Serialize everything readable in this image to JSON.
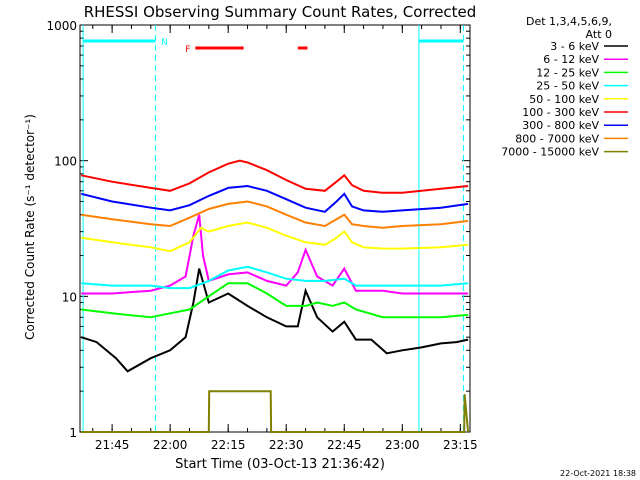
{
  "chart_data": {
    "type": "line",
    "title": "RHESSI Observing Summary Count Rates, Corrected",
    "ylabel": "Corrected Count Rate (s⁻¹ detector⁻¹)",
    "xlabel": "Start Time (03-Oct-13 21:36:42)",
    "yscale": "log",
    "ylim": [
      1,
      1000
    ],
    "y_ticks": [
      {
        "v": 1,
        "label": "1"
      },
      {
        "v": 10,
        "label": "10"
      },
      {
        "v": 100,
        "label": "100"
      },
      {
        "v": 1000,
        "label": "1000"
      }
    ],
    "x_start_min": 1296.7,
    "x_end_min": 1397.5,
    "x_ticks": [
      {
        "m": 1305,
        "label": "21:45"
      },
      {
        "m": 1320,
        "label": "22:00"
      },
      {
        "m": 1335,
        "label": "22:15"
      },
      {
        "m": 1350,
        "label": "22:30"
      },
      {
        "m": 1365,
        "label": "22:45"
      },
      {
        "m": 1380,
        "label": "23:00"
      },
      {
        "m": 1395,
        "label": "23:15"
      }
    ],
    "legend_header": [
      "Det 1,3,4,5,6,9,",
      "Att 0"
    ],
    "series": [
      {
        "name": "3 - 6 keV",
        "color": "#000000",
        "x": [
          1297,
          1301,
          1306,
          1309,
          1315,
          1320,
          1324,
          1326,
          1327.5,
          1330,
          1335,
          1340,
          1345,
          1350,
          1353,
          1355,
          1358,
          1362,
          1365,
          1368,
          1372,
          1376,
          1380,
          1385,
          1390,
          1394,
          1397
        ],
        "y": [
          5,
          4.6,
          3.5,
          2.8,
          3.5,
          4,
          5,
          9,
          16,
          9,
          10.5,
          8.5,
          7,
          6,
          6,
          11,
          7,
          5.5,
          6.5,
          4.8,
          4.8,
          3.8,
          4,
          4.2,
          4.5,
          4.6,
          4.8
        ]
      },
      {
        "name": "6 - 12 keV",
        "color": "#ff00ff",
        "x": [
          1297,
          1305,
          1315,
          1320,
          1324,
          1326,
          1327.5,
          1328.5,
          1330,
          1335,
          1340,
          1345,
          1350,
          1353,
          1355,
          1358,
          1362,
          1365,
          1368,
          1375,
          1380,
          1390,
          1397
        ],
        "y": [
          10.5,
          10.5,
          11,
          12,
          14,
          28,
          40,
          20,
          13,
          14.5,
          15,
          13,
          12,
          15,
          22,
          14,
          12,
          16,
          11,
          11,
          10.5,
          10.5,
          10.5
        ]
      },
      {
        "name": "12 - 25 keV",
        "color": "#00ff00",
        "x": [
          1297,
          1305,
          1315,
          1320,
          1325,
          1330,
          1335,
          1340,
          1345,
          1350,
          1355,
          1358,
          1362,
          1365,
          1368,
          1375,
          1380,
          1390,
          1397
        ],
        "y": [
          8,
          7.5,
          7,
          7.5,
          8,
          10,
          12.5,
          12.5,
          10.5,
          8.5,
          8.5,
          9,
          8.5,
          9,
          8,
          7,
          7,
          7,
          7.3
        ]
      },
      {
        "name": "25 - 50 keV",
        "color": "#00ffff",
        "x": [
          1297,
          1305,
          1315,
          1320,
          1325,
          1330,
          1335,
          1340,
          1345,
          1350,
          1355,
          1360,
          1365,
          1368,
          1375,
          1380,
          1390,
          1397
        ],
        "y": [
          12.5,
          12,
          12,
          11.5,
          11.5,
          13,
          15.5,
          16.5,
          15,
          13.5,
          13,
          13,
          13.5,
          12,
          12,
          12,
          12,
          12.5
        ]
      },
      {
        "name": "50 - 100 keV",
        "color": "#ffff00",
        "x": [
          1297,
          1305,
          1315,
          1320,
          1325,
          1328,
          1330,
          1335,
          1340,
          1345,
          1350,
          1355,
          1360,
          1363,
          1365,
          1367,
          1370,
          1375,
          1380,
          1390,
          1397
        ],
        "y": [
          27,
          25,
          23,
          21.5,
          25,
          32,
          30,
          33,
          35,
          32,
          28,
          25,
          24,
          27,
          30,
          25,
          23,
          22.5,
          22.5,
          23,
          24
        ]
      },
      {
        "name": "100 - 300 keV",
        "color": "#ff0000",
        "x": [
          1297,
          1305,
          1315,
          1320,
          1325,
          1330,
          1335,
          1338,
          1340,
          1345,
          1350,
          1355,
          1360,
          1363,
          1365,
          1367,
          1370,
          1375,
          1380,
          1390,
          1397
        ],
        "y": [
          78,
          70,
          63,
          60,
          68,
          82,
          95,
          100,
          97,
          85,
          72,
          62,
          60,
          70,
          78,
          66,
          60,
          58,
          58,
          62,
          65
        ]
      },
      {
        "name": "300 - 800 keV",
        "color": "#0000ff",
        "x": [
          1297,
          1305,
          1315,
          1320,
          1325,
          1330,
          1335,
          1340,
          1345,
          1350,
          1355,
          1360,
          1363,
          1365,
          1367,
          1370,
          1375,
          1380,
          1390,
          1397
        ],
        "y": [
          57,
          50,
          45,
          43,
          47,
          55,
          63,
          65,
          60,
          52,
          45,
          42,
          50,
          57,
          46,
          43,
          42,
          43,
          45,
          48
        ]
      },
      {
        "name": "800 - 7000 keV",
        "color": "#ff8000",
        "x": [
          1297,
          1305,
          1315,
          1320,
          1325,
          1330,
          1335,
          1340,
          1345,
          1350,
          1355,
          1360,
          1363,
          1365,
          1367,
          1370,
          1375,
          1380,
          1390,
          1397
        ],
        "y": [
          40,
          37,
          34,
          33,
          38,
          44,
          48,
          50,
          46,
          40,
          35,
          33,
          37,
          40,
          34,
          33,
          32,
          33,
          34,
          36
        ]
      },
      {
        "name": "7000 - 15000 keV",
        "color": "#808000",
        "x": [
          1297,
          1330,
          1330.1,
          1346,
          1346.1,
          1396,
          1396.1,
          1397
        ],
        "y": [
          1,
          1,
          2,
          2,
          1,
          1,
          1.9,
          1
        ]
      }
    ],
    "flags": {
      "vertical_lines": [
        1297.5,
        1316.2,
        1384.3,
        1395.8
      ],
      "segments": [
        {
          "label": "",
          "color": "#00ffff",
          "from": 1297.5,
          "to": 1316.2
        },
        {
          "label": "N",
          "color": "#00ffff",
          "from": 1316.6,
          "to": 1316.6
        },
        {
          "label": "",
          "color": "#00ffff",
          "from": 1384.3,
          "to": 1395.8
        },
        {
          "label": "F",
          "color": "#ff0000",
          "from": 1326.5,
          "to": 1339
        },
        {
          "label": "",
          "color": "#ff0000",
          "from": 1353,
          "to": 1355.5
        }
      ]
    },
    "timestamp": "22-Oct-2021 18:38"
  }
}
